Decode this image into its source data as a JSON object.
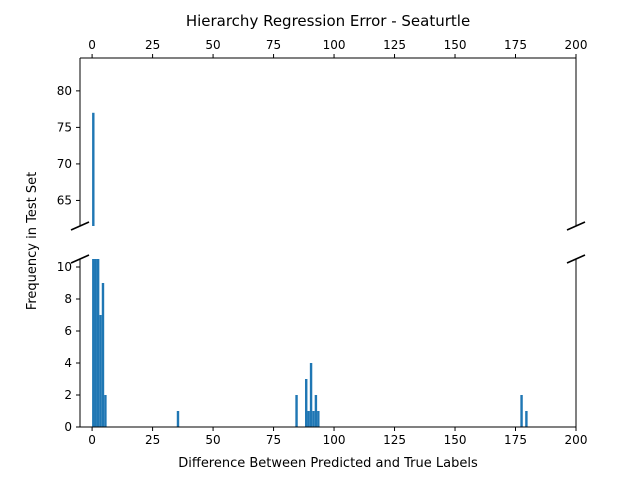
{
  "chart_data": {
    "type": "bar",
    "title": "Hierarchy Regression Error - Seaturtle",
    "xlabel": "Difference Between Predicted and True Labels",
    "ylabel": "Frequency in Test Set",
    "xlim": [
      -5,
      200
    ],
    "x_ticks": [
      "0",
      "25",
      "50",
      "75",
      "100",
      "125",
      "150",
      "175",
      "200"
    ],
    "broken_axis": true,
    "upper_ylim": [
      61.5,
      84.5
    ],
    "upper_y_ticks": [
      "65",
      "70",
      "75",
      "80"
    ],
    "lower_ylim": [
      0,
      10.5
    ],
    "lower_y_ticks": [
      "0",
      "2",
      "4",
      "6",
      "8",
      "10"
    ],
    "bar_color": "#1f77b4",
    "bins": [
      {
        "x": 0,
        "value": 77
      },
      {
        "x": 1,
        "value": 54
      },
      {
        "x": 2,
        "value": 28
      },
      {
        "x": 3,
        "value": 7
      },
      {
        "x": 4,
        "value": 9
      },
      {
        "x": 5,
        "value": 2
      },
      {
        "x": 35,
        "value": 1
      },
      {
        "x": 84,
        "value": 2
      },
      {
        "x": 88,
        "value": 3
      },
      {
        "x": 89,
        "value": 1
      },
      {
        "x": 90,
        "value": 4
      },
      {
        "x": 91,
        "value": 1
      },
      {
        "x": 92,
        "value": 2
      },
      {
        "x": 93,
        "value": 1
      },
      {
        "x": 177,
        "value": 2
      },
      {
        "x": 179,
        "value": 1
      }
    ]
  }
}
